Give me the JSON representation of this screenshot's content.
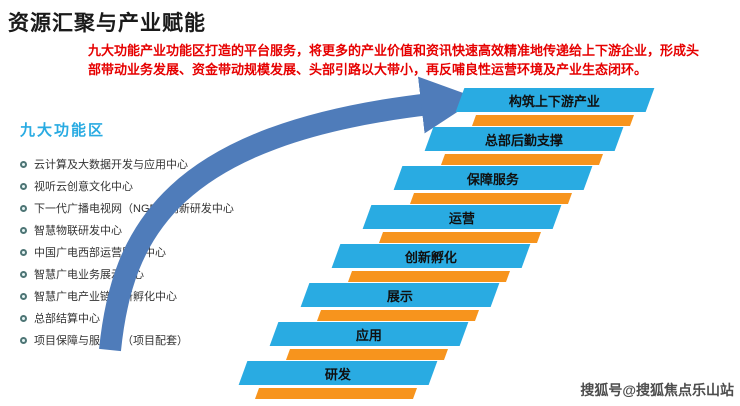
{
  "page": {
    "title": "资源汇聚与产业赋能",
    "description": "九大功能产业功能区打造的平台服务，将更多的产业价值和资讯快速高效精准地传递给上下游企业，形成头部带动业务发展、资金带动规模发展、头部引路以大带小，再反哺良性运营环境及产业生态闭环。",
    "watermark": "搜狐号@搜狐焦点乐山站"
  },
  "functional_zones": {
    "heading": "九大功能区",
    "items": [
      "云计算及大数据开发与应用中心",
      "视听云创意文化中心",
      "下一代广播电视网（NGB）创新研发中心",
      "智慧物联研发中心",
      "中国广电西部运营服务中心",
      "智慧广电业务展示中心",
      "智慧广电产业链创新孵化中心",
      "总部结算中心",
      "项目保障与服务区（项目配套）"
    ]
  },
  "staircase": {
    "steps_top_to_bottom": [
      "构筑上下游产业",
      "总部后勤支撑",
      "保障服务",
      "运营",
      "创新孵化",
      "展示",
      "应用",
      "研发"
    ]
  },
  "colors": {
    "step_blue": "#29abe2",
    "underline_orange": "#f7941d",
    "heading_blue": "#29abe2",
    "description_red": "#e60000",
    "arrow_blue": "#4f7cba"
  }
}
